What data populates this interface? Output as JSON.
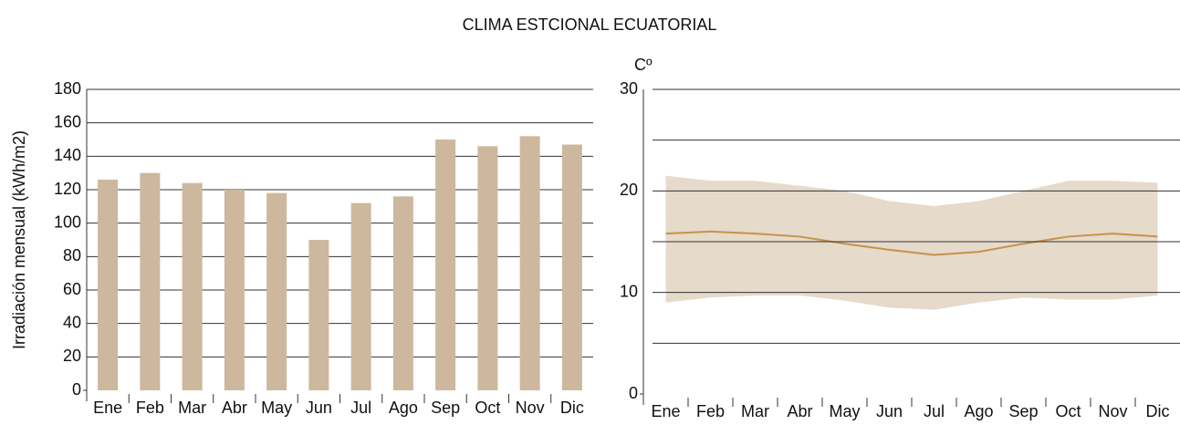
{
  "title": "CLIMA ESTCIONAL ECUATORIAL",
  "chart_data": [
    {
      "type": "bar",
      "y_label": "Irradiación mensual (kWh/m2)",
      "categories": [
        "Ene",
        "Feb",
        "Mar",
        "Abr",
        "May",
        "Jun",
        "Jul",
        "Ago",
        "Sep",
        "Oct",
        "Nov",
        "Dic"
      ],
      "values": [
        126,
        130,
        124,
        120,
        118,
        90,
        112,
        116,
        150,
        146,
        152,
        147
      ],
      "color": "#cdb89d",
      "ylim": [
        0,
        180
      ],
      "yticks": [
        0,
        20,
        40,
        60,
        80,
        100,
        120,
        140,
        160,
        180
      ],
      "grid": true
    },
    {
      "type": "line",
      "y_label": "Cº",
      "categories": [
        "Ene",
        "Feb",
        "Mar",
        "Abr",
        "May",
        "Jun",
        "Jul",
        "Ago",
        "Sep",
        "Oct",
        "Nov",
        "Dic"
      ],
      "series": [
        {
          "color": "#c8924a",
          "values": [
            15.8,
            16,
            15.8,
            15.5,
            14.8,
            14.2,
            13.7,
            14,
            14.8,
            15.5,
            15.8,
            15.5
          ]
        }
      ],
      "band": {
        "color": "#e6dacb",
        "upper": [
          21.5,
          21,
          21,
          20.5,
          20,
          19,
          18.5,
          19,
          20,
          21,
          21,
          20.8
        ],
        "lower": [
          9,
          9.5,
          9.7,
          9.7,
          9.2,
          8.5,
          8.3,
          9,
          9.5,
          9.3,
          9.3,
          9.7
        ]
      },
      "ylim": [
        0,
        30
      ],
      "yticks": [
        0,
        10,
        20,
        30
      ],
      "minor_yticks": [
        5,
        15,
        25
      ],
      "grid": true
    }
  ]
}
